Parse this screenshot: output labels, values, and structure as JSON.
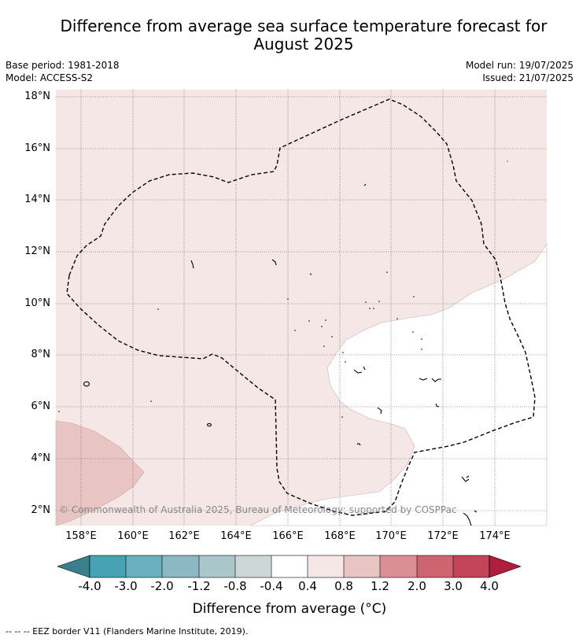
{
  "title_line1": "Difference from average sea surface temperature forecast for",
  "title_line2": "August 2025",
  "base_period": "Base period: 1981-2018",
  "model": "Model: ACCESS-S2",
  "model_run": "Model run: 19/07/2025",
  "issued": "Issued: 21/07/2025",
  "copyright": "© Commonwealth of Australia 2025, Bureau of Meteorology; supported by COSPPac",
  "lat_labels": [
    "18°N",
    "16°N",
    "14°N",
    "12°N",
    "10°N",
    "8°N",
    "6°N",
    "4°N",
    "2°N"
  ],
  "lon_labels": [
    "158°E",
    "160°E",
    "162°E",
    "164°E",
    "166°E",
    "168°E",
    "170°E",
    "172°E",
    "174°E"
  ],
  "colorbar": {
    "title": "Difference from average (°C)",
    "tick_labels": [
      "-4.0",
      "-3.0",
      "-2.0",
      "-1.2",
      "-0.8",
      "-0.4",
      "0.4",
      "0.8",
      "1.2",
      "2.0",
      "3.0",
      "4.0"
    ],
    "colors": {
      "below_min": "#3a7f8c",
      "bands": [
        "#47a3b4",
        "#6aafbe",
        "#8bb8c3",
        "#a9c7cb",
        "#cfd6d8",
        "#ffffff",
        "#f4e7e6",
        "#e8c5c2",
        "#db8f95",
        "#cd6570",
        "#c14556"
      ],
      "above_max": "#b01e3e"
    }
  },
  "legend_footer": "--  --  -- EEZ border V11 (Flanders Marine Institute, 2019)."
}
